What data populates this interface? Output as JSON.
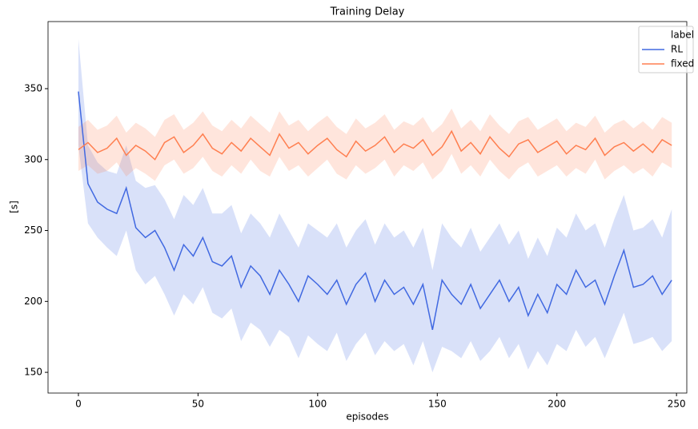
{
  "chart_data": {
    "type": "line",
    "title": "Training Delay",
    "x_label": "episodes",
    "y_label": "[s]",
    "legend_title": "label",
    "legend_position": "upper right",
    "grid": false,
    "x": [
      0,
      4,
      8,
      12,
      16,
      20,
      24,
      28,
      32,
      36,
      40,
      44,
      48,
      52,
      56,
      60,
      64,
      68,
      72,
      76,
      80,
      84,
      88,
      92,
      96,
      100,
      104,
      108,
      112,
      116,
      120,
      124,
      128,
      132,
      136,
      140,
      144,
      148,
      152,
      156,
      160,
      164,
      168,
      172,
      176,
      180,
      184,
      188,
      192,
      196,
      200,
      204,
      208,
      212,
      216,
      220,
      224,
      228,
      232,
      236,
      240,
      244,
      248
    ],
    "xlim": [
      -12.7,
      254.3
    ],
    "xticks": [
      0,
      50,
      100,
      150,
      200,
      250
    ],
    "ylim": [
      135.4,
      397.3
    ],
    "yticks": [
      150,
      200,
      250,
      300,
      350
    ],
    "series": [
      {
        "name": "RL",
        "color": "#4169e1",
        "values": [
          348,
          283,
          270,
          265,
          262,
          280,
          252,
          245,
          250,
          238,
          222,
          240,
          232,
          245,
          228,
          225,
          232,
          210,
          225,
          218,
          205,
          222,
          212,
          200,
          218,
          212,
          205,
          215,
          198,
          212,
          220,
          200,
          215,
          205,
          210,
          198,
          212,
          180,
          215,
          205,
          198,
          212,
          195,
          205,
          215,
          200,
          210,
          190,
          205,
          192,
          212,
          205,
          222,
          210,
          215,
          198,
          218,
          236,
          210,
          212,
          218,
          205,
          215
        ],
        "lower": [
          310,
          255,
          245,
          238,
          232,
          250,
          222,
          212,
          218,
          205,
          190,
          205,
          198,
          210,
          192,
          188,
          195,
          172,
          185,
          180,
          168,
          180,
          175,
          160,
          176,
          170,
          165,
          178,
          158,
          170,
          178,
          162,
          172,
          165,
          170,
          155,
          172,
          150,
          168,
          165,
          160,
          172,
          158,
          165,
          175,
          160,
          170,
          152,
          165,
          155,
          170,
          165,
          180,
          168,
          175,
          160,
          176,
          192,
          170,
          172,
          175,
          165,
          172
        ],
        "upper": [
          385,
          310,
          298,
          292,
          290,
          310,
          285,
          280,
          282,
          272,
          258,
          275,
          268,
          280,
          262,
          262,
          268,
          248,
          262,
          255,
          245,
          262,
          250,
          238,
          255,
          250,
          245,
          255,
          238,
          250,
          258,
          240,
          255,
          245,
          250,
          238,
          252,
          222,
          255,
          245,
          238,
          252,
          235,
          245,
          255,
          240,
          250,
          230,
          245,
          232,
          252,
          245,
          262,
          250,
          255,
          238,
          258,
          275,
          250,
          252,
          258,
          245,
          265
        ]
      },
      {
        "name": "fixed",
        "color": "#ff7f50",
        "values": [
          307,
          312,
          305,
          308,
          315,
          303,
          310,
          306,
          300,
          312,
          316,
          305,
          310,
          318,
          308,
          304,
          312,
          306,
          315,
          309,
          303,
          318,
          308,
          312,
          304,
          310,
          315,
          307,
          302,
          313,
          306,
          310,
          316,
          305,
          311,
          308,
          314,
          303,
          309,
          320,
          306,
          312,
          304,
          316,
          308,
          302,
          311,
          314,
          305,
          309,
          313,
          304,
          310,
          307,
          315,
          303,
          309,
          312,
          306,
          311,
          305,
          314,
          310
        ],
        "lower": [
          292,
          296,
          290,
          292,
          298,
          288,
          294,
          290,
          285,
          296,
          300,
          290,
          294,
          302,
          292,
          288,
          296,
          290,
          300,
          292,
          288,
          302,
          292,
          296,
          288,
          294,
          300,
          290,
          286,
          296,
          290,
          294,
          300,
          288,
          296,
          292,
          298,
          286,
          292,
          304,
          290,
          296,
          288,
          300,
          292,
          286,
          294,
          298,
          288,
          292,
          296,
          288,
          294,
          290,
          300,
          286,
          292,
          296,
          290,
          294,
          288,
          298,
          294
        ],
        "upper": [
          323,
          328,
          321,
          324,
          331,
          319,
          326,
          322,
          316,
          328,
          332,
          321,
          326,
          334,
          324,
          320,
          328,
          322,
          331,
          325,
          319,
          334,
          324,
          328,
          320,
          326,
          331,
          323,
          318,
          329,
          322,
          326,
          332,
          321,
          327,
          324,
          330,
          319,
          325,
          336,
          322,
          328,
          320,
          332,
          324,
          318,
          327,
          330,
          321,
          325,
          329,
          320,
          326,
          323,
          331,
          319,
          325,
          328,
          322,
          327,
          321,
          330,
          326
        ]
      }
    ]
  }
}
